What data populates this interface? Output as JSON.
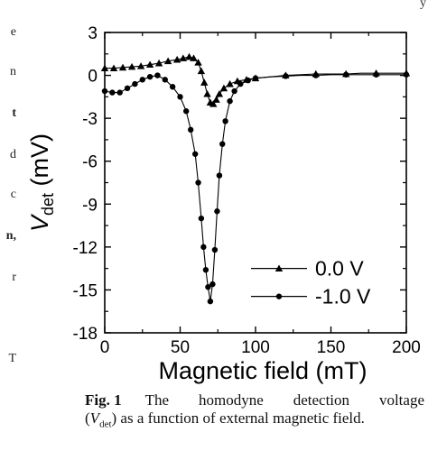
{
  "page": {
    "corner_mark": "y",
    "left_fragments": [
      {
        "text": "e",
        "bold": false
      },
      {
        "text": "n",
        "bold": false
      },
      {
        "text": "t",
        "bold": true
      },
      {
        "text": "d",
        "bold": false
      },
      {
        "text": "c",
        "bold": false
      },
      {
        "text": "n,",
        "bold": true
      },
      {
        "text": "r",
        "bold": false
      },
      {
        "text": "T",
        "bold": false
      }
    ]
  },
  "chart_data": {
    "type": "line",
    "title": "",
    "xlabel": "Magnetic field (mT)",
    "ylabel_main": "V",
    "ylabel_sub": "det",
    "ylabel_unit": " (mV)",
    "xlim": [
      0,
      200
    ],
    "ylim": [
      -18,
      3
    ],
    "xticks": [
      "0",
      "50",
      "100",
      "150",
      "200"
    ],
    "yticks": [
      "3",
      "0",
      "-3",
      "-6",
      "-9",
      "-12",
      "-15",
      "-18"
    ],
    "legend": {
      "position": "bottom-right"
    },
    "grid": false,
    "colors": {
      "line": "#000000",
      "axes": "#000000"
    },
    "series": [
      {
        "name": "0.0 V",
        "marker": "triangle",
        "x": [
          0,
          6,
          12,
          18,
          24,
          30,
          36,
          42,
          48,
          52,
          56,
          59,
          62,
          64,
          66,
          68,
          70,
          72,
          74,
          76,
          79,
          83,
          88,
          94,
          100,
          110,
          120,
          130,
          140,
          150,
          160,
          170,
          180,
          190,
          200
        ],
        "y": [
          0.5,
          0.5,
          0.55,
          0.6,
          0.65,
          0.75,
          0.85,
          1.0,
          1.1,
          1.2,
          1.3,
          1.2,
          0.9,
          0.3,
          -0.5,
          -1.3,
          -1.9,
          -2.0,
          -1.7,
          -1.3,
          -0.9,
          -0.6,
          -0.4,
          -0.3,
          -0.2,
          -0.1,
          0.0,
          0.05,
          0.1,
          0.1,
          0.1,
          0.15,
          0.15,
          0.15,
          0.15
        ]
      },
      {
        "name": "-1.0 V",
        "marker": "circle",
        "x": [
          0,
          5,
          10,
          15,
          20,
          25,
          30,
          35,
          40,
          45,
          50,
          54,
          57,
          60,
          62,
          64,
          65.5,
          67,
          68.5,
          70,
          71.5,
          73,
          74.5,
          76,
          78,
          80,
          83,
          86,
          90,
          95,
          100,
          110,
          120,
          130,
          140,
          150,
          160,
          170,
          180,
          190,
          200
        ],
        "y": [
          -1.1,
          -1.2,
          -1.2,
          -0.9,
          -0.6,
          -0.3,
          -0.1,
          0.0,
          -0.3,
          -0.8,
          -1.5,
          -2.5,
          -3.8,
          -5.5,
          -7.5,
          -10.0,
          -12.0,
          -13.6,
          -14.8,
          -15.8,
          -14.6,
          -12.2,
          -9.5,
          -7.0,
          -4.8,
          -3.2,
          -1.8,
          -1.1,
          -0.6,
          -0.35,
          -0.2,
          -0.1,
          -0.05,
          0.0,
          0.0,
          0.05,
          0.05,
          0.05,
          0.05,
          0.05,
          0.05
        ]
      }
    ]
  },
  "caption": {
    "fig_label": "Fig. 1",
    "line1_words": [
      "The",
      "homodyne",
      "detection",
      "voltage"
    ],
    "line2_open": "(",
    "line2_v": "V",
    "line2_sub": "det",
    "line2_rest": ") as a function of external magnetic field."
  }
}
